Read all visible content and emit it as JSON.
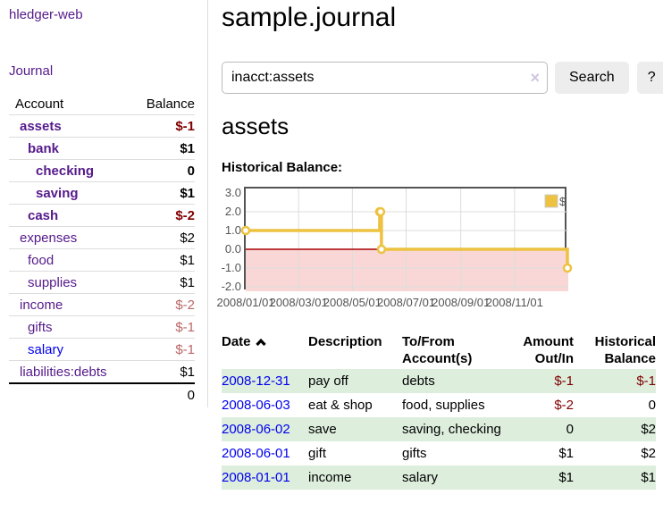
{
  "app": {
    "title": "hledger-web"
  },
  "sidebar": {
    "journal_link": "Journal",
    "table": {
      "account_header": "Account",
      "balance_header": "Balance",
      "rows": [
        {
          "name": "assets",
          "balance": "$-1"
        },
        {
          "name": "bank",
          "balance": "$1"
        },
        {
          "name": "checking",
          "balance": "0"
        },
        {
          "name": "saving",
          "balance": "$1"
        },
        {
          "name": "cash",
          "balance": "$-2"
        },
        {
          "name": "expenses",
          "balance": "$2"
        },
        {
          "name": "food",
          "balance": "$1"
        },
        {
          "name": "supplies",
          "balance": "$1"
        },
        {
          "name": "income",
          "balance": "$-2"
        },
        {
          "name": "gifts",
          "balance": "$-1"
        },
        {
          "name": "salary",
          "balance": "$-1"
        },
        {
          "name": "liabilities:debts",
          "balance": "$1"
        }
      ],
      "total": "0"
    }
  },
  "main": {
    "title": "sample.journal",
    "search": {
      "query": "inacct:assets",
      "clear_glyph": "×",
      "button_label": "Search",
      "help_label": "?"
    },
    "account_heading": "assets",
    "chart_label": "Historical Balance:"
  },
  "chart_data": {
    "type": "line",
    "step": true,
    "title": "Historical Balance",
    "series": [
      {
        "name": "$",
        "color": "#edc240",
        "points": [
          [
            "2008-01-01",
            1
          ],
          [
            "2008-06-01",
            2
          ],
          [
            "2008-06-02",
            2
          ],
          [
            "2008-06-03",
            0
          ],
          [
            "2008-12-31",
            -1
          ]
        ]
      }
    ],
    "x_range": [
      "2008-01-01",
      "2009-01-01"
    ],
    "ylim": [
      -2,
      3
    ],
    "y_ticks": [
      "3.0",
      "2.0",
      "1.0",
      "0.0",
      "-1.0",
      "-2.0"
    ],
    "x_ticks": [
      "2008/01/01",
      "2008/03/01",
      "2008/05/01",
      "2008/07/01",
      "2008/09/01",
      "2008/11/01"
    ],
    "grid": true,
    "gridline_color": "#dcdcdc",
    "border_color": "#545454",
    "negative_region_color": "#f9d7d7",
    "zero_line_color": "#aa0000",
    "legend": {
      "label": "$",
      "position": "top-right"
    }
  },
  "register": {
    "headers": {
      "date": "Date",
      "description": "Description",
      "accounts": "To/From Account(s)",
      "amount": "Amount Out/In",
      "balance": "Historical Balance"
    },
    "rows": [
      {
        "date": "2008-12-31",
        "description": "pay off",
        "accounts": "debts",
        "amount": "$-1",
        "balance": "$-1"
      },
      {
        "date": "2008-06-03",
        "description": "eat & shop",
        "accounts": "food, supplies",
        "amount": "$-2",
        "balance": "0"
      },
      {
        "date": "2008-06-02",
        "description": "save",
        "accounts": "saving, checking",
        "amount": "0",
        "balance": "$2"
      },
      {
        "date": "2008-06-01",
        "description": "gift",
        "accounts": "gifts",
        "amount": "$1",
        "balance": "$2"
      },
      {
        "date": "2008-01-01",
        "description": "income",
        "accounts": "salary",
        "amount": "$1",
        "balance": "$1"
      }
    ]
  },
  "colors": {
    "link_purple": "#551a8b",
    "link_blue": "#0000ee",
    "negative_strong": "#800000",
    "negative_soft": "#bb6666",
    "row_green": "#ddeedd",
    "series_gold": "#edc240",
    "negative_region_pink": "#f9d7d7",
    "zero_line_red": "#aa0000"
  }
}
